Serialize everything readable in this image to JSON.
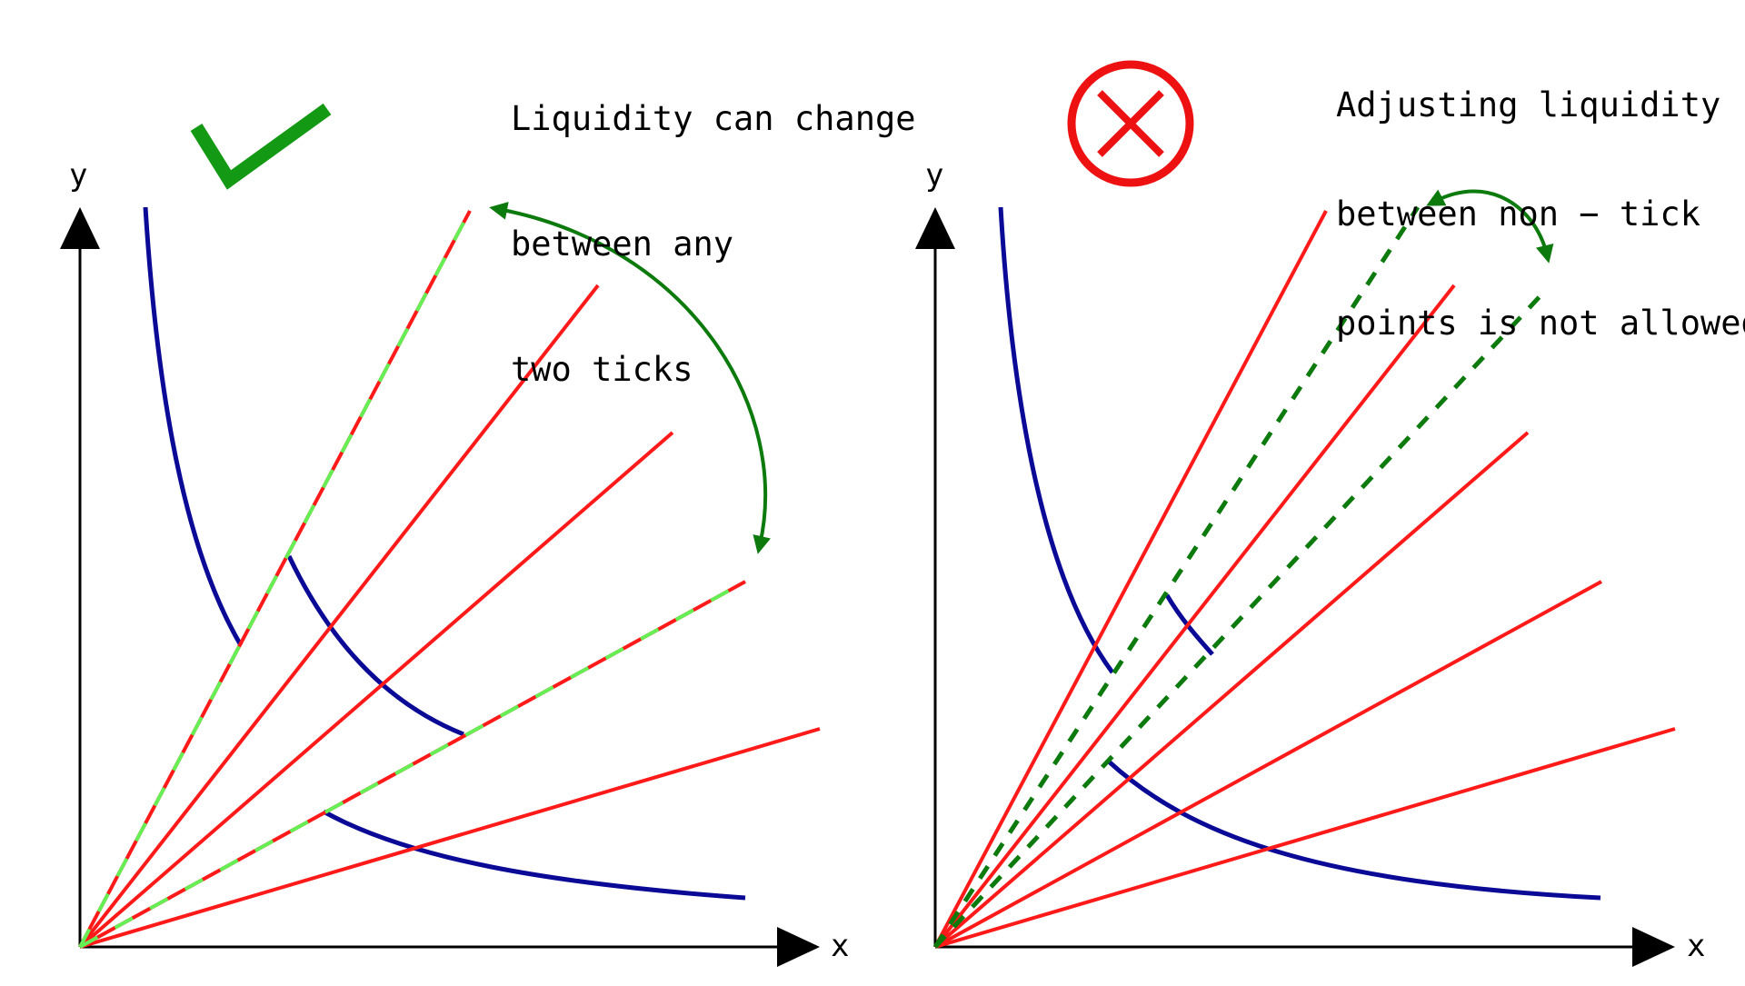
{
  "left_panel": {
    "caption_lines": [
      "Liquidity can change",
      "between any",
      "two ticks"
    ],
    "status_icon": "check-mark-icon",
    "axis_x_label": "x",
    "axis_y_label": "y"
  },
  "right_panel": {
    "caption_lines": [
      "Adjusting liquidity",
      "between non − tick",
      "points is not allowed"
    ],
    "status_icon": "cross-circle-icon",
    "axis_x_label": "x",
    "axis_y_label": "y"
  },
  "colors": {
    "curve": "#0a0a96",
    "tick_line": "#ff1a1a",
    "highlight_dash": "#66ee55",
    "arrow": "#0c7a0c",
    "check": "#139913",
    "cross": "#ee1111",
    "axis": "#000000"
  }
}
